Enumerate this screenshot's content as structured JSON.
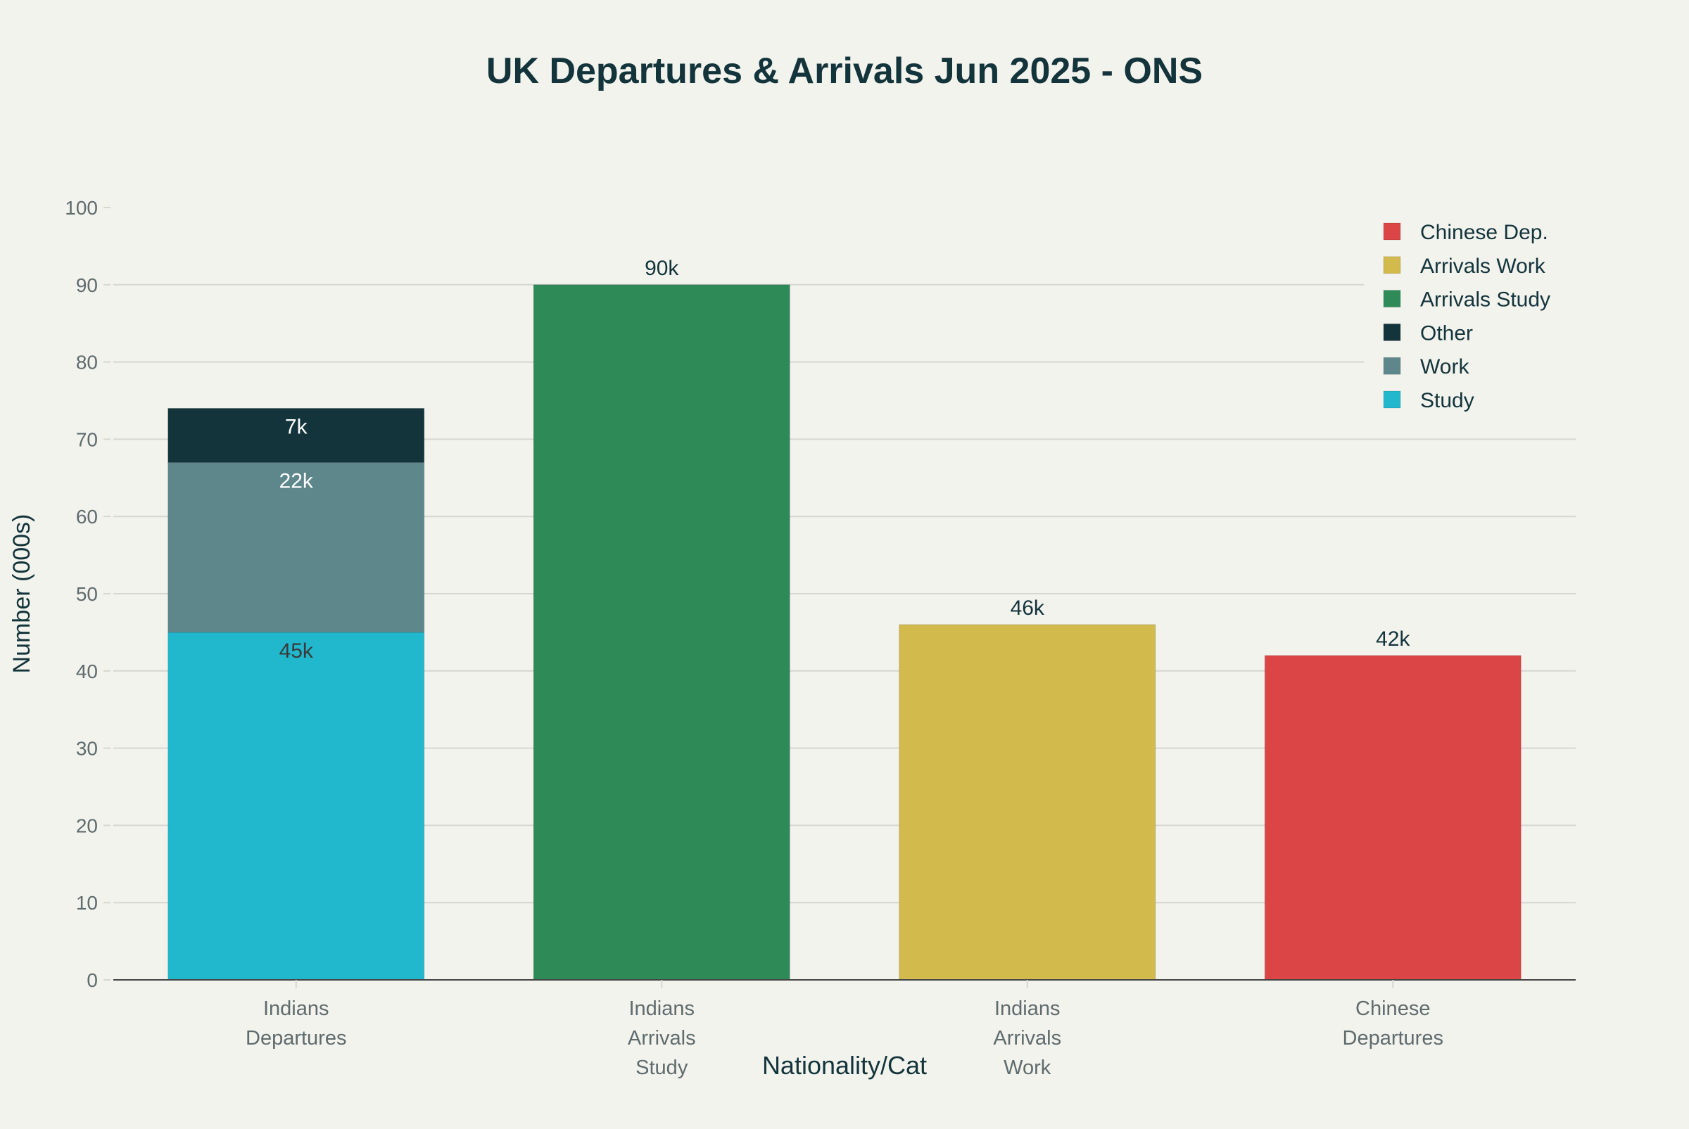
{
  "chart_data": {
    "type": "bar",
    "stacked": true,
    "title": "UK Departures & Arrivals Jun 2025 - ONS",
    "xlabel": "Nationality/Cat",
    "ylabel": "Number (000s)",
    "ylim": [
      0,
      100
    ],
    "yticks": [
      0,
      10,
      20,
      30,
      40,
      50,
      60,
      70,
      80,
      90,
      100
    ],
    "grid": true,
    "legend_position": "top-right",
    "categories": [
      [
        "Indians",
        "Departures"
      ],
      [
        "Indians",
        "Arrivals",
        "Study"
      ],
      [
        "Indians",
        "Arrivals",
        "Work"
      ],
      [
        "Chinese",
        "Departures"
      ]
    ],
    "series": [
      {
        "name": "Study",
        "color": "#21b8cd",
        "values": [
          45,
          null,
          null,
          null
        ],
        "labels": [
          "45k",
          null,
          null,
          null
        ],
        "label_color": "#3a3a3a"
      },
      {
        "name": "Work",
        "color": "#5e878c",
        "values": [
          22,
          null,
          null,
          null
        ],
        "labels": [
          "22k",
          null,
          null,
          null
        ],
        "label_color": "#ffffff"
      },
      {
        "name": "Other",
        "color": "#13343b",
        "values": [
          7,
          null,
          null,
          null
        ],
        "labels": [
          "7k",
          null,
          null,
          null
        ],
        "label_color": "#ffffff"
      },
      {
        "name": "Arrivals Study",
        "color": "#2e8b57",
        "values": [
          null,
          90,
          null,
          null
        ],
        "labels": [
          null,
          "90k",
          null,
          null
        ],
        "label_color": "#13343b"
      },
      {
        "name": "Arrivals Work",
        "color": "#d2ba4c",
        "values": [
          null,
          null,
          46,
          null
        ],
        "labels": [
          null,
          null,
          "46k",
          null
        ],
        "label_color": "#13343b"
      },
      {
        "name": "Chinese Dep.",
        "color": "#db4545",
        "values": [
          null,
          null,
          null,
          42
        ],
        "labels": [
          null,
          null,
          null,
          "42k"
        ],
        "label_color": "#13343b"
      }
    ],
    "legend_order": [
      "Chinese Dep.",
      "Arrivals Work",
      "Arrivals Study",
      "Other",
      "Work",
      "Study"
    ]
  },
  "colors": {
    "background": "#f3f3ee",
    "text": "#13343b",
    "tick_text": "#5f6b6d",
    "grid": "#d6d6d2"
  }
}
